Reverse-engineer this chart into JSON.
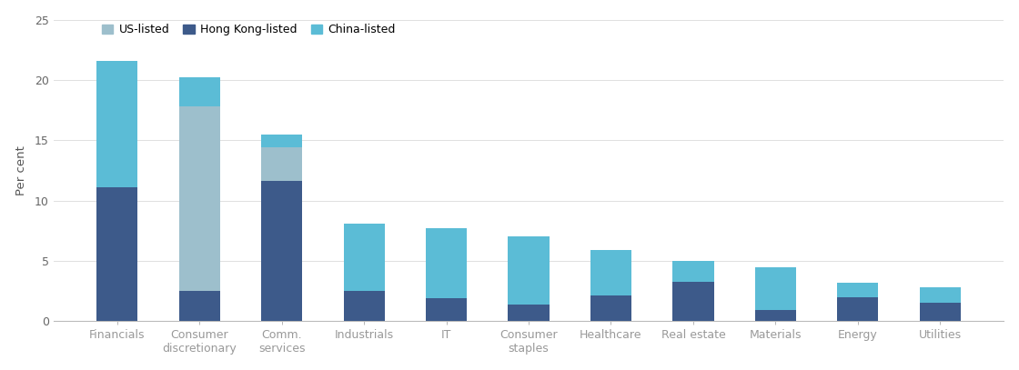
{
  "categories": [
    "Financials",
    "Consumer\ndiscretionary",
    "Comm.\nservices",
    "Industrials",
    "IT",
    "Consumer\nstaples",
    "Healthcare",
    "Real estate",
    "Materials",
    "Energy",
    "Utilities"
  ],
  "us_listed": [
    0.0,
    15.3,
    2.8,
    0.0,
    0.0,
    0.0,
    0.0,
    0.0,
    0.0,
    0.0,
    0.0
  ],
  "hk_listed": [
    11.1,
    2.5,
    11.6,
    2.5,
    1.9,
    1.4,
    2.1,
    3.3,
    0.9,
    2.0,
    1.5
  ],
  "china_listed": [
    10.5,
    2.4,
    1.1,
    5.6,
    5.8,
    5.6,
    3.8,
    1.7,
    3.6,
    1.2,
    1.3
  ],
  "colors": {
    "us_listed": "#9dbfcc",
    "hk_listed": "#3d5a8a",
    "china_listed": "#5bbcd6"
  },
  "legend_labels": [
    "US-listed",
    "Hong Kong-listed",
    "China-listed"
  ],
  "ylabel": "Per cent",
  "ylim": [
    0,
    25
  ],
  "yticks": [
    0,
    5,
    10,
    15,
    20,
    25
  ],
  "background_color": "#ffffff"
}
